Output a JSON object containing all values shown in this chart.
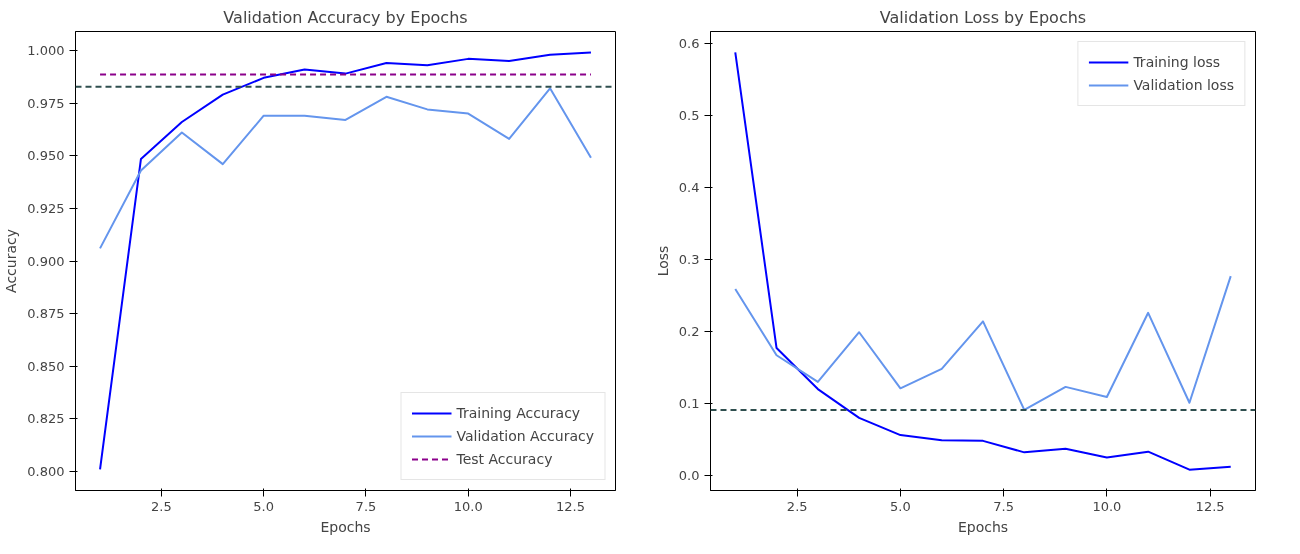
{
  "chart_data": [
    {
      "type": "line",
      "title": "Validation Accuracy by Epochs",
      "xlabel": "Epochs",
      "ylabel": "Accuracy",
      "x": [
        1,
        2,
        3,
        4,
        5,
        6,
        7,
        8,
        9,
        10,
        11,
        12,
        13
      ],
      "xlim": [
        0.4,
        13.6
      ],
      "xticks": [
        {
          "value": 2.5,
          "label": "2.5"
        },
        {
          "value": 5,
          "label": "5.0"
        },
        {
          "value": 7.5,
          "label": "7.5"
        },
        {
          "value": 10,
          "label": "10.0"
        },
        {
          "value": 12.5,
          "label": "12.5"
        }
      ],
      "ylim": [
        0.791,
        1.009
      ],
      "yticks": [
        {
          "value": 0.8,
          "label": "0.800"
        },
        {
          "value": 0.825,
          "label": "0.825"
        },
        {
          "value": 0.85,
          "label": "0.850"
        },
        {
          "value": 0.875,
          "label": "0.875"
        },
        {
          "value": 0.9,
          "label": "0.900"
        },
        {
          "value": 0.925,
          "label": "0.925"
        },
        {
          "value": 0.95,
          "label": "0.950"
        },
        {
          "value": 0.975,
          "label": "0.975"
        },
        {
          "value": 1,
          "label": "1.000"
        }
      ],
      "grid": false,
      "legend": "bottom right",
      "line_style": "solid",
      "series": [
        {
          "name": "Training Accuracy",
          "color": "#0000ff",
          "values": [
            0.801,
            0.9485,
            0.966,
            0.979,
            0.987,
            0.991,
            0.989,
            0.994,
            0.993,
            0.996,
            0.995,
            0.998,
            0.999
          ]
        },
        {
          "name": "Validation Accuracy",
          "color": "#6495ed",
          "values": [
            0.906,
            0.943,
            0.961,
            0.946,
            0.969,
            0.969,
            0.967,
            0.978,
            0.972,
            0.97,
            0.958,
            0.982,
            0.949
          ]
        },
        {
          "name": "Test Accuracy",
          "color": "#8b008b",
          "line_style": "dashed",
          "x": [
            1,
            13
          ],
          "values": [
            0.9886,
            0.9886
          ]
        }
      ],
      "ref_lines": [
        {
          "axis": "y",
          "value": 0.9828,
          "color": "#2f4f4f",
          "line_style": "dashed"
        }
      ]
    },
    {
      "type": "line",
      "title": "Validation Loss by Epochs",
      "xlabel": "Epochs",
      "ylabel": "Loss",
      "x": [
        1,
        2,
        3,
        4,
        5,
        6,
        7,
        8,
        9,
        10,
        11,
        12,
        13
      ],
      "xlim": [
        0.4,
        13.6
      ],
      "xticks": [
        {
          "value": 2.5,
          "label": "2.5"
        },
        {
          "value": 5,
          "label": "5.0"
        },
        {
          "value": 7.5,
          "label": "7.5"
        },
        {
          "value": 10,
          "label": "10.0"
        },
        {
          "value": 12.5,
          "label": "12.5"
        }
      ],
      "ylim": [
        -0.021,
        0.617
      ],
      "yticks": [
        {
          "value": 0,
          "label": "0.0"
        },
        {
          "value": 0.1,
          "label": "0.1"
        },
        {
          "value": 0.2,
          "label": "0.2"
        },
        {
          "value": 0.3,
          "label": "0.3"
        },
        {
          "value": 0.4,
          "label": "0.4"
        },
        {
          "value": 0.5,
          "label": "0.5"
        },
        {
          "value": 0.6,
          "label": "0.6"
        }
      ],
      "grid": false,
      "legend": "top right",
      "line_style": "solid",
      "series": [
        {
          "name": "Training loss",
          "color": "#0000ff",
          "values": [
            0.588,
            0.177,
            0.12,
            0.08,
            0.056,
            0.049,
            0.048,
            0.032,
            0.037,
            0.025,
            0.033,
            0.008,
            0.012
          ]
        },
        {
          "name": "Validation loss",
          "color": "#6495ed",
          "values": [
            0.259,
            0.167,
            0.13,
            0.199,
            0.121,
            0.148,
            0.214,
            0.091,
            0.123,
            0.109,
            0.226,
            0.101,
            0.277
          ]
        }
      ],
      "ref_lines": [
        {
          "axis": "y",
          "value": 0.091,
          "color": "#2f4f4f",
          "line_style": "dashed"
        }
      ]
    }
  ]
}
